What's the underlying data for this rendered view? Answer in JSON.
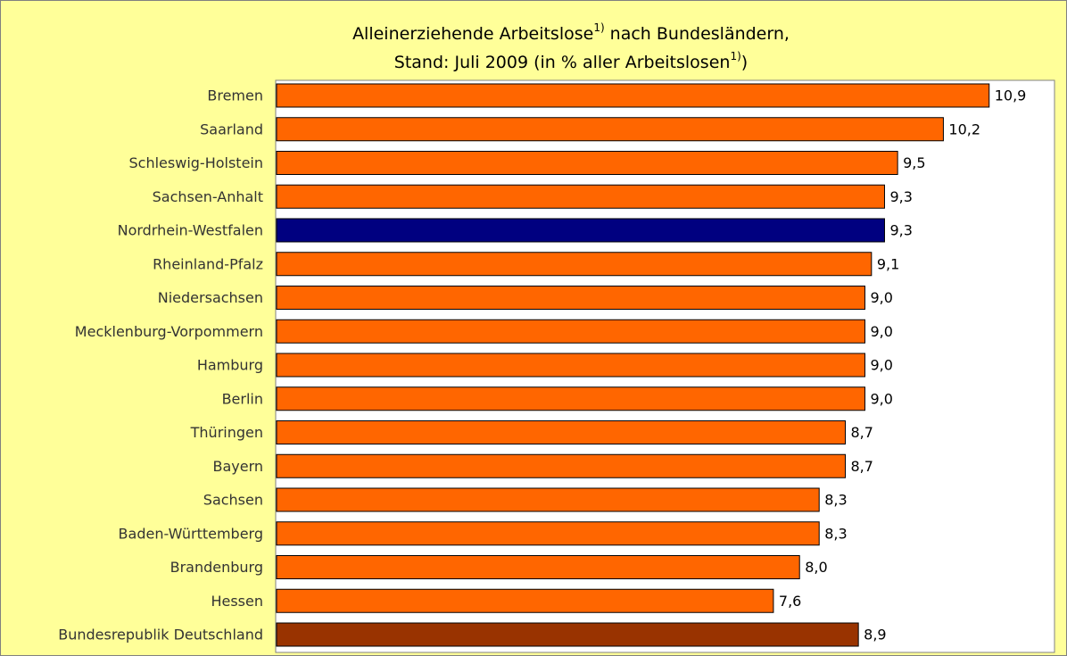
{
  "chart_data": {
    "type": "barh",
    "title_lines": [
      [
        "Alleinerziehende Arbeitslose",
        "1)",
        " nach Bundesländern,"
      ],
      [
        "Stand: Juli 2009 (in % aller Arbeitslosen",
        "1)",
        ")"
      ]
    ],
    "categories": [
      "Bremen",
      "Saarland",
      "Schleswig-Holstein",
      "Sachsen-Anhalt",
      "Nordrhein-Westfalen",
      "Rheinland-Pfalz",
      "Niedersachsen",
      "Mecklenburg-Vorpommern",
      "Hamburg",
      "Berlin",
      "Thüringen",
      "Bayern",
      "Sachsen",
      "Baden-Württemberg",
      "Brandenburg",
      "Hessen",
      "Bundesrepublik Deutschland"
    ],
    "values": [
      10.9,
      10.2,
      9.5,
      9.3,
      9.3,
      9.1,
      9.0,
      9.0,
      9.0,
      9.0,
      8.7,
      8.7,
      8.3,
      8.3,
      8.0,
      7.6,
      8.9
    ],
    "value_labels": [
      "10,9",
      "10,2",
      "9,5",
      "9,3",
      "9,3",
      "9,1",
      "9,0",
      "9,0",
      "9,0",
      "9,0",
      "8,7",
      "8,7",
      "8,3",
      "8,3",
      "8,0",
      "7,6",
      "8,9"
    ],
    "colors": [
      "#ff6600",
      "#ff6600",
      "#ff6600",
      "#ff6600",
      "#000080",
      "#ff6600",
      "#ff6600",
      "#ff6600",
      "#ff6600",
      "#ff6600",
      "#ff6600",
      "#ff6600",
      "#ff6600",
      "#ff6600",
      "#ff6600",
      "#ff6600",
      "#993300"
    ],
    "xlim": [
      0,
      11.9
    ]
  }
}
